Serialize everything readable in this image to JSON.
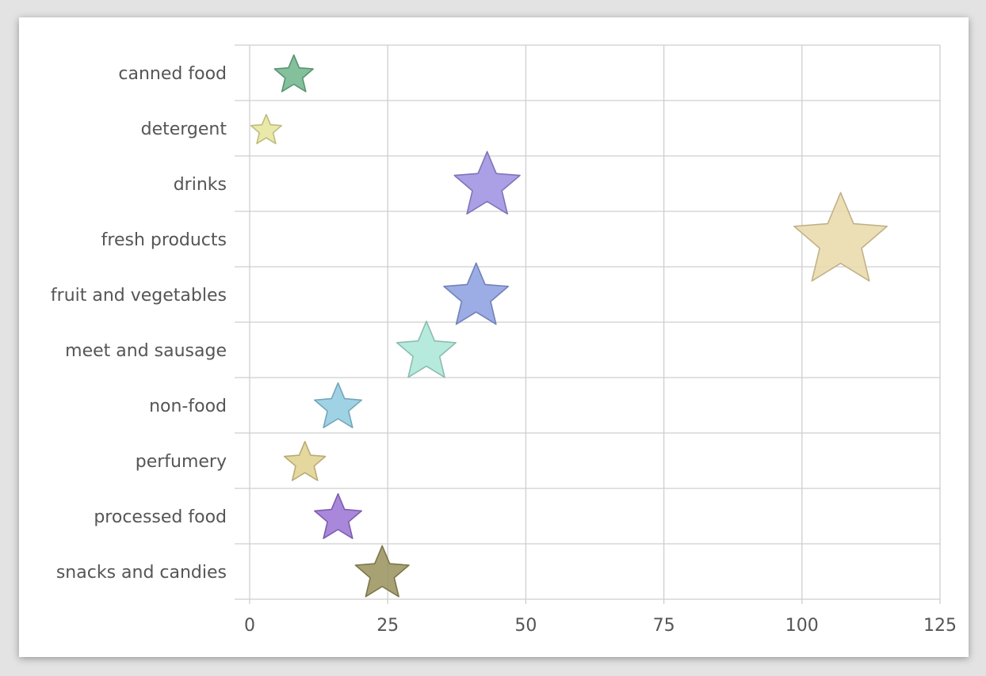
{
  "chart_data": {
    "type": "scatter",
    "title": "",
    "xlabel": "",
    "ylabel": "",
    "marker": "star",
    "xlim": [
      0,
      125
    ],
    "xticks": [
      0,
      25,
      50,
      75,
      100,
      125
    ],
    "grid": true,
    "legend": "none",
    "categories": [
      "canned food",
      "detergent",
      "drinks",
      "fresh products",
      "fruit and vegetables",
      "meet and sausage",
      "non-food",
      "perfumery",
      "processed food",
      "snacks and candies"
    ],
    "points": [
      {
        "category": "canned food",
        "x": 8,
        "size": 8,
        "color": "#6db58a"
      },
      {
        "category": "detergent",
        "x": 3,
        "size": 3,
        "color": "#e6e59a"
      },
      {
        "category": "drinks",
        "x": 43,
        "size": 43,
        "color": "#9c8ee0"
      },
      {
        "category": "fresh products",
        "x": 107,
        "size": 107,
        "color": "#ead9a8"
      },
      {
        "category": "fruit and vegetables",
        "x": 41,
        "size": 41,
        "color": "#8b9ddf"
      },
      {
        "category": "meet and sausage",
        "x": 32,
        "size": 32,
        "color": "#a9e6d6"
      },
      {
        "category": "non-food",
        "x": 16,
        "size": 16,
        "color": "#8ecae0"
      },
      {
        "category": "perfumery",
        "x": 10,
        "size": 10,
        "color": "#e0d18e"
      },
      {
        "category": "processed food",
        "x": 16,
        "size": 16,
        "color": "#9a72d3"
      },
      {
        "category": "snacks and candies",
        "x": 24,
        "size": 24,
        "color": "#98905a"
      }
    ]
  }
}
